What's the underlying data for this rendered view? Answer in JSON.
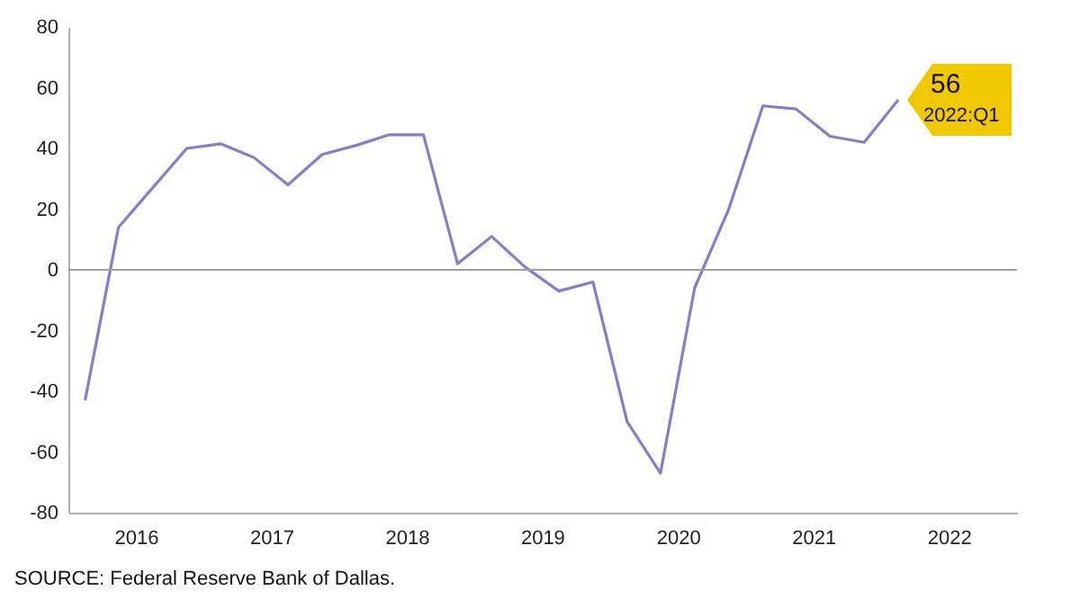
{
  "chart_data": {
    "type": "line",
    "x": [
      "2016-02-15",
      "2016-05-15",
      "2016-08-15",
      "2016-11-15",
      "2017-02-15",
      "2017-05-15",
      "2017-08-15",
      "2017-11-15",
      "2018-02-15",
      "2018-05-15",
      "2018-08-15",
      "2018-11-15",
      "2019-02-15",
      "2019-05-15",
      "2019-08-15",
      "2019-11-15",
      "2020-02-15",
      "2020-05-15",
      "2020-08-15",
      "2020-11-15",
      "2021-02-15",
      "2021-05-15",
      "2021-08-15",
      "2021-11-15",
      "2022-02-15"
    ],
    "series": [
      {
        "color": "#8a7cc8",
        "values": [
          -43,
          14,
          27,
          40,
          41.5,
          37,
          28,
          38,
          41,
          44.5,
          44.5,
          2,
          11,
          1,
          -7,
          -4,
          -50,
          -67,
          -6,
          20,
          54,
          53,
          44,
          42,
          56
        ],
        "value_labels": [
          null,
          null,
          null,
          null,
          null,
          null,
          null,
          null,
          null,
          null,
          null,
          null,
          null,
          null,
          null,
          null,
          null,
          null,
          null,
          null,
          null,
          null,
          null,
          null,
          "56"
        ]
      }
    ],
    "xlim": [
      "2016-01-01",
      "2023-01-01"
    ],
    "xticks": [
      {
        "value": "2016-07-01",
        "label": "2016"
      },
      {
        "value": "2017-07-01",
        "label": "2017"
      },
      {
        "value": "2018-07-01",
        "label": "2018"
      },
      {
        "value": "2019-07-01",
        "label": "2019"
      },
      {
        "value": "2020-07-01",
        "label": "2020"
      },
      {
        "value": "2021-07-01",
        "label": "2021"
      },
      {
        "value": "2022-07-01",
        "label": "2022"
      }
    ],
    "ylim": [
      -80,
      80
    ],
    "yticks": [
      -80,
      -60,
      -40,
      -20,
      0,
      20,
      40,
      60,
      80
    ],
    "ref_lines": [
      {
        "axis": "y",
        "value": 0,
        "color": "#a0a0a0"
      }
    ],
    "annotations": [
      {
        "text": "2022:Q1",
        "x": "2022-02-15",
        "y": 56
      },
      "SOURCE: Federal Reserve Bank of Dallas."
    ],
    "grid": false,
    "marker": "none",
    "line_style": "solid"
  }
}
